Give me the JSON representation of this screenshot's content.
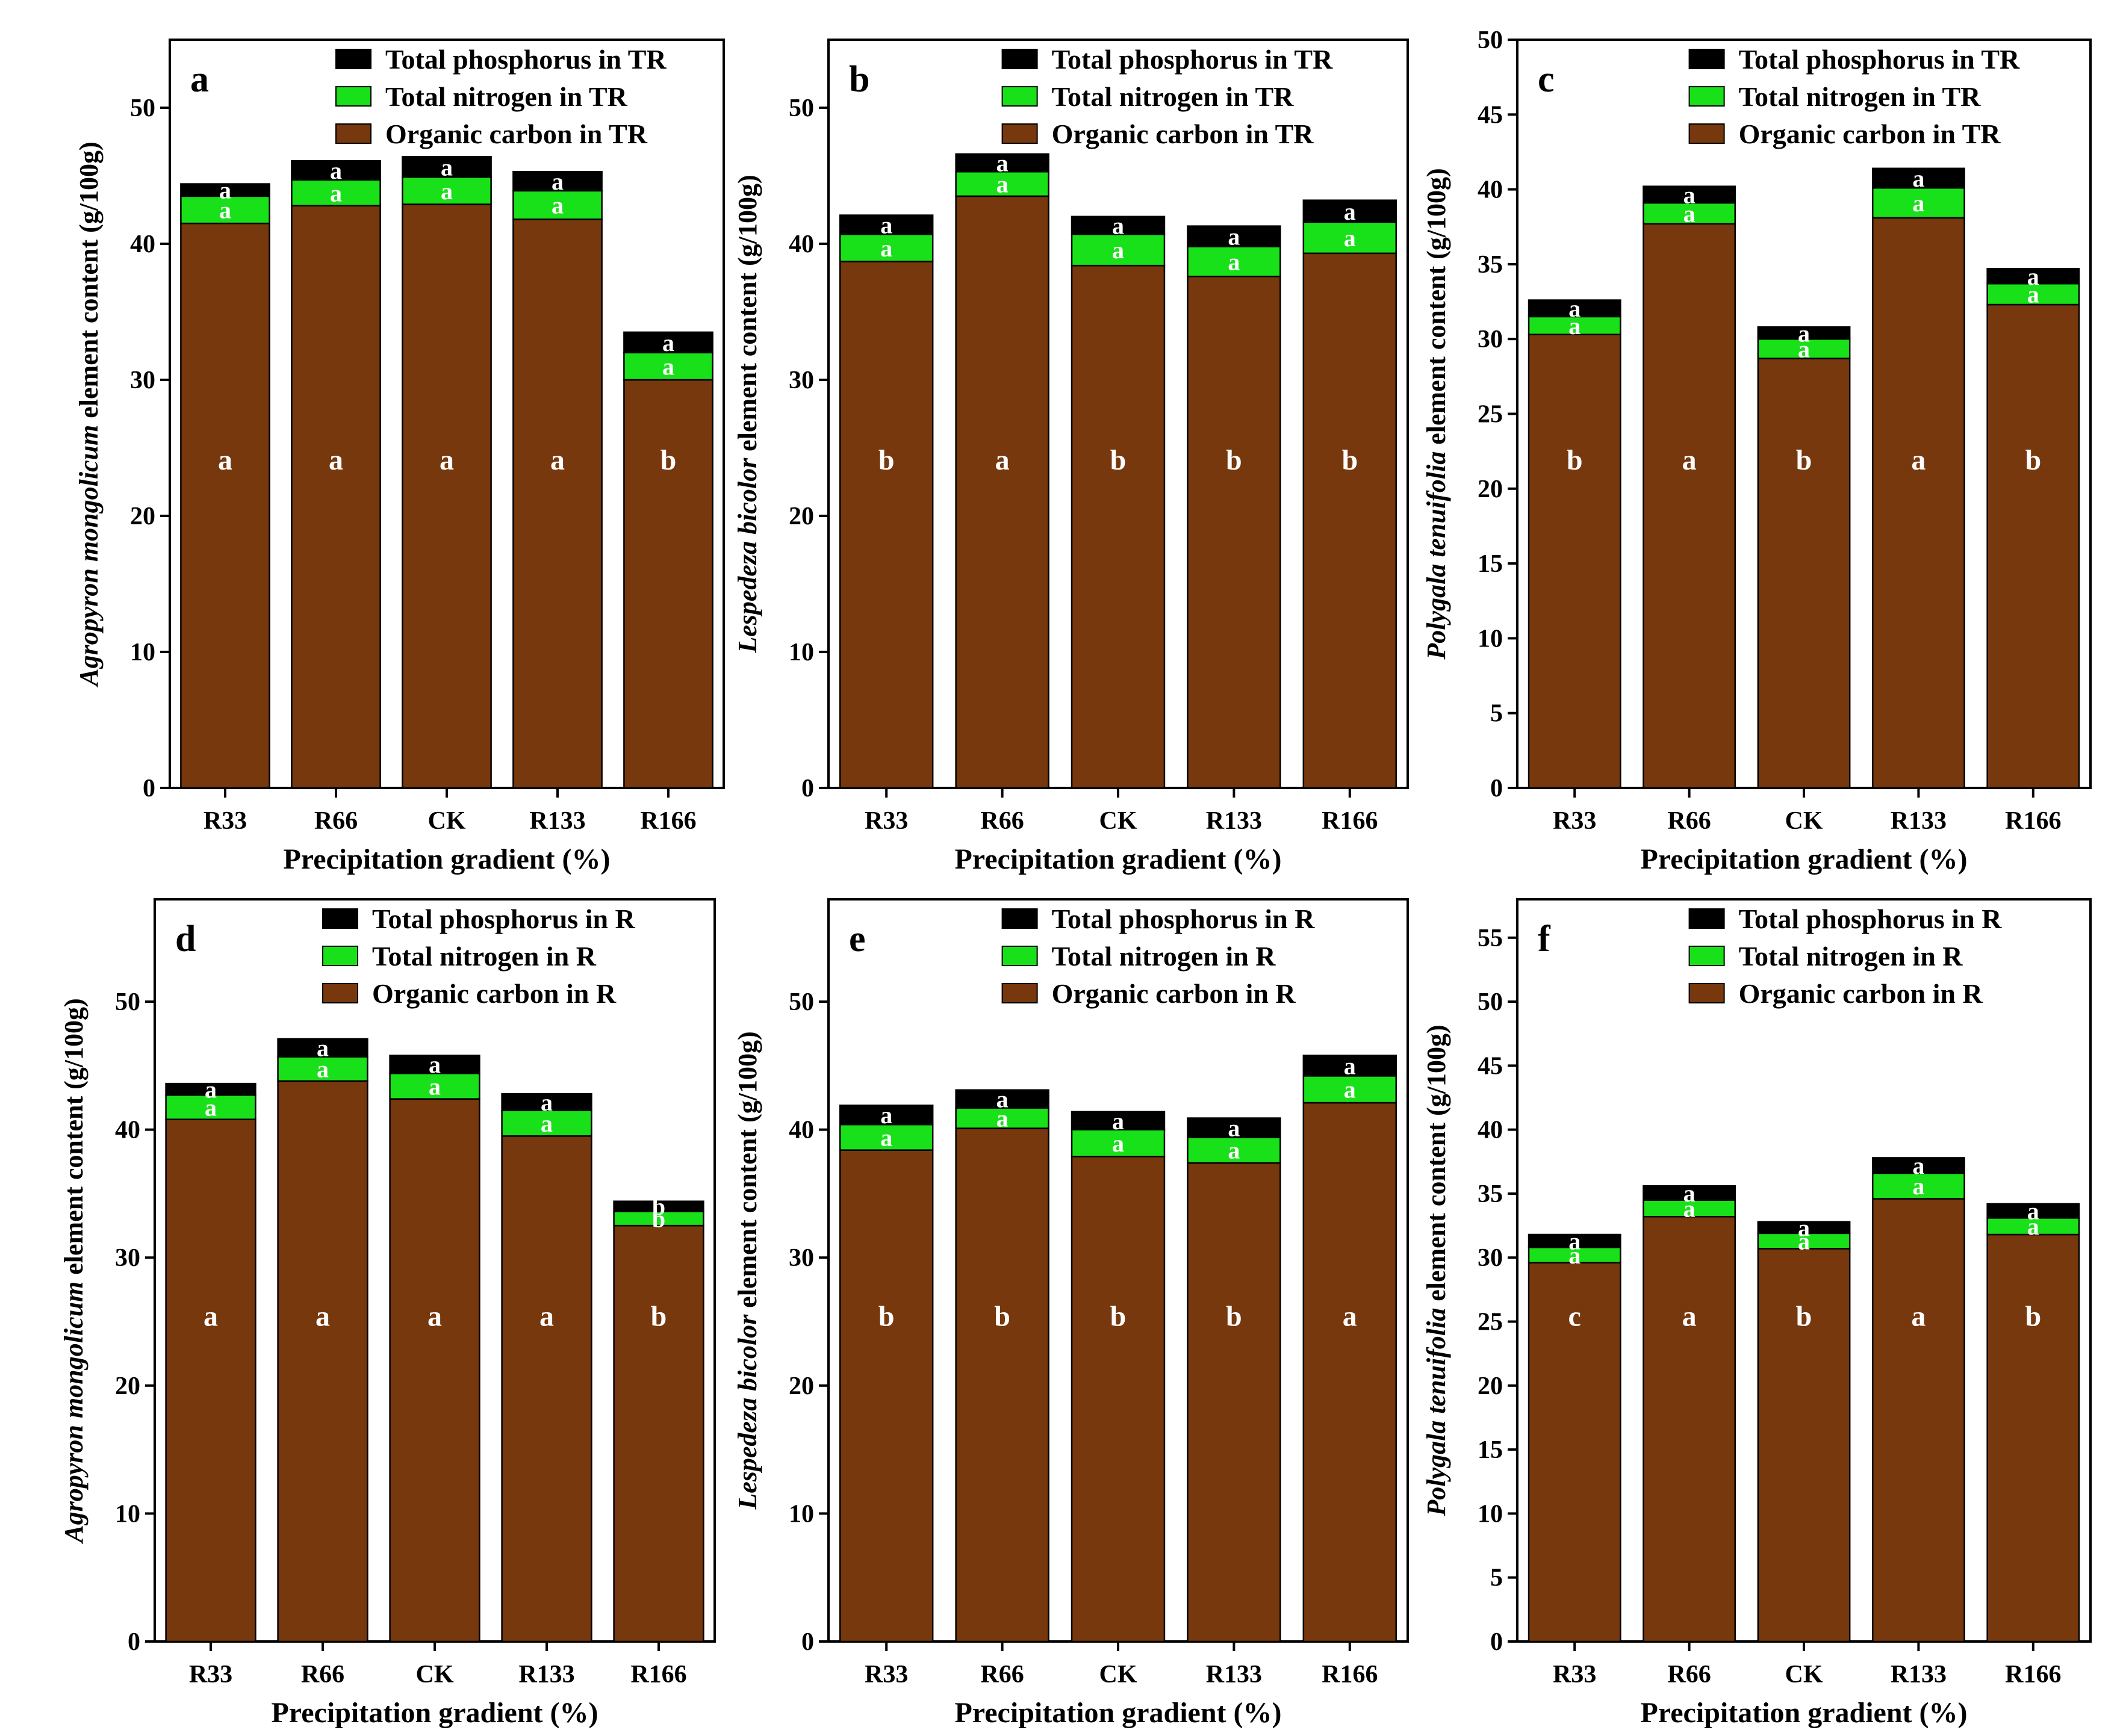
{
  "colors": {
    "organic_carbon": "#77380D",
    "total_nitrogen": "#19E119",
    "total_phosphorus": "#000000"
  },
  "chart_data": [
    {
      "type": "bar",
      "stacked": true,
      "panel": "a",
      "categories": [
        "R33",
        "R66",
        "CK",
        "R133",
        "R166"
      ],
      "xlabel": "Precipitation gradient (%)",
      "ylabel_species": "Agropyron mongolicum",
      "ylabel_rest": " element content (g/100g)",
      "ylim": [
        0,
        55
      ],
      "yticks": [
        "0",
        "10",
        "20",
        "30",
        "40",
        "50"
      ],
      "ytick_values": [
        0,
        10,
        20,
        30,
        40,
        50
      ],
      "legend_position": "top-right",
      "series": [
        {
          "name": "Organic carbon in TR",
          "key": "organic_carbon",
          "values": [
            41.5,
            42.8,
            42.9,
            41.8,
            30.0
          ],
          "letters": [
            "a",
            "a",
            "a",
            "a",
            "b"
          ]
        },
        {
          "name": "Total nitrogen in TR",
          "key": "total_nitrogen",
          "values": [
            2.0,
            1.9,
            2.0,
            2.1,
            2.0
          ],
          "letters": [
            "a",
            "a",
            "a",
            "a",
            "a"
          ]
        },
        {
          "name": "Total  phosphorus in TR",
          "key": "total_phosphorus",
          "values": [
            0.9,
            1.4,
            1.5,
            1.4,
            1.5
          ],
          "letters": [
            "a",
            "a",
            "a",
            "a",
            "a"
          ]
        }
      ]
    },
    {
      "type": "bar",
      "stacked": true,
      "panel": "b",
      "categories": [
        "R33",
        "R66",
        "CK",
        "R133",
        "R166"
      ],
      "xlabel": "Precipitation gradient (%)",
      "ylabel_species": "Lespedeza bicolor",
      "ylabel_rest": " element content (g/100g)",
      "ylim": [
        0,
        55
      ],
      "yticks": [
        "0",
        "10",
        "20",
        "30",
        "40",
        "50"
      ],
      "ytick_values": [
        0,
        10,
        20,
        30,
        40,
        50
      ],
      "legend_position": "top-right",
      "series": [
        {
          "name": "Organic carbon in TR",
          "key": "organic_carbon",
          "values": [
            38.7,
            43.5,
            38.4,
            37.6,
            39.3
          ],
          "letters": [
            "b",
            "a",
            "b",
            "b",
            "b"
          ]
        },
        {
          "name": "Total nitrogen in TR",
          "key": "total_nitrogen",
          "values": [
            2.0,
            1.8,
            2.3,
            2.2,
            2.3
          ],
          "letters": [
            "a",
            "a",
            "a",
            "a",
            "a"
          ]
        },
        {
          "name": "Total  phosphorus in TR",
          "key": "total_phosphorus",
          "values": [
            1.4,
            1.3,
            1.3,
            1.5,
            1.6
          ],
          "letters": [
            "a",
            "a",
            "a",
            "a",
            "a"
          ]
        }
      ]
    },
    {
      "type": "bar",
      "stacked": true,
      "panel": "c",
      "categories": [
        "R33",
        "R66",
        "CK",
        "R133",
        "R166"
      ],
      "xlabel": "Precipitation gradient (%)",
      "ylabel_species": "Polygala tenuifolia",
      "ylabel_rest": " element content (g/100g)",
      "ylim": [
        0,
        50
      ],
      "yticks": [
        "0",
        "5",
        "10",
        "15",
        "20",
        "25",
        "30",
        "35",
        "40",
        "45",
        "50"
      ],
      "ytick_values": [
        0,
        5,
        10,
        15,
        20,
        25,
        30,
        35,
        40,
        45,
        50
      ],
      "legend_position": "top-right",
      "series": [
        {
          "name": "Organic carbon in TR",
          "key": "organic_carbon",
          "values": [
            30.3,
            37.7,
            28.7,
            38.1,
            32.3
          ],
          "letters": [
            "b",
            "a",
            "b",
            "a",
            "b"
          ]
        },
        {
          "name": "Total nitrogen in TR",
          "key": "total_nitrogen",
          "values": [
            1.2,
            1.4,
            1.3,
            2.0,
            1.4
          ],
          "letters": [
            "a",
            "a",
            "a",
            "a",
            "a"
          ]
        },
        {
          "name": "Total  phosphorus in TR",
          "key": "total_phosphorus",
          "values": [
            1.1,
            1.1,
            0.8,
            1.3,
            1.0
          ],
          "letters": [
            "a",
            "a",
            "a",
            "a",
            "a"
          ]
        }
      ]
    },
    {
      "type": "bar",
      "stacked": true,
      "panel": "d",
      "categories": [
        "R33",
        "R66",
        "CK",
        "R133",
        "R166"
      ],
      "xlabel": "Precipitation gradient (%)",
      "ylabel_species": "Agropyron mongolicum",
      "ylabel_rest": " element content (g/100g)",
      "ylim": [
        0,
        58
      ],
      "yticks": [
        "0",
        "10",
        "20",
        "30",
        "40",
        "50"
      ],
      "ytick_values": [
        0,
        10,
        20,
        30,
        40,
        50
      ],
      "legend_position": "top-right",
      "series": [
        {
          "name": "Organic carbon in R",
          "key": "organic_carbon",
          "values": [
            40.8,
            43.8,
            42.4,
            39.5,
            32.5
          ],
          "letters": [
            "a",
            "a",
            "a",
            "a",
            "b"
          ]
        },
        {
          "name": "Total nitrogen in R",
          "key": "total_nitrogen",
          "values": [
            1.9,
            1.9,
            2.0,
            2.0,
            1.1
          ],
          "letters": [
            "a",
            "a",
            "a",
            "a",
            "b"
          ]
        },
        {
          "name": "Total  phosphorus in R",
          "key": "total_phosphorus",
          "values": [
            0.9,
            1.4,
            1.4,
            1.3,
            0.8
          ],
          "letters": [
            "a",
            "a",
            "a",
            "a",
            "b"
          ]
        }
      ]
    },
    {
      "type": "bar",
      "stacked": true,
      "panel": "e",
      "categories": [
        "R33",
        "R66",
        "CK",
        "R133",
        "R166"
      ],
      "xlabel": "Precipitation gradient (%)",
      "ylabel_species": "Lespedeza bicolor",
      "ylabel_rest": " element content (g/100g)",
      "ylim": [
        0,
        58
      ],
      "yticks": [
        "0",
        "10",
        "20",
        "30",
        "40",
        "50"
      ],
      "ytick_values": [
        0,
        10,
        20,
        30,
        40,
        50
      ],
      "legend_position": "top-right",
      "series": [
        {
          "name": "Organic carbon in R",
          "key": "organic_carbon",
          "values": [
            38.4,
            40.1,
            37.9,
            37.4,
            42.1
          ],
          "letters": [
            "b",
            "b",
            "b",
            "b",
            "a"
          ]
        },
        {
          "name": "Total nitrogen in R",
          "key": "total_nitrogen",
          "values": [
            2.0,
            1.6,
            2.1,
            2.0,
            2.1
          ],
          "letters": [
            "a",
            "a",
            "a",
            "a",
            "a"
          ]
        },
        {
          "name": "Total  phosphorus in R",
          "key": "total_phosphorus",
          "values": [
            1.5,
            1.4,
            1.4,
            1.5,
            1.6
          ],
          "letters": [
            "a",
            "a",
            "a",
            "a",
            "a"
          ]
        }
      ]
    },
    {
      "type": "bar",
      "stacked": true,
      "panel": "f",
      "categories": [
        "R33",
        "R66",
        "CK",
        "R133",
        "R166"
      ],
      "xlabel": "Precipitation gradient (%)",
      "ylabel_species": "Polygala tenuifolia",
      "ylabel_rest": " element content (g/100g)",
      "ylim": [
        0,
        58
      ],
      "yticks": [
        "0",
        "5",
        "10",
        "15",
        "20",
        "25",
        "30",
        "35",
        "40",
        "45",
        "50",
        "55"
      ],
      "ytick_values": [
        0,
        5,
        10,
        15,
        20,
        25,
        30,
        35,
        40,
        45,
        50,
        55
      ],
      "legend_position": "top-right",
      "series": [
        {
          "name": "Organic carbon in R",
          "key": "organic_carbon",
          "values": [
            29.6,
            33.2,
            30.7,
            34.6,
            31.8
          ],
          "letters": [
            "c",
            "a",
            "b",
            "a",
            "b"
          ]
        },
        {
          "name": "Total nitrogen in R",
          "key": "total_nitrogen",
          "values": [
            1.2,
            1.3,
            1.2,
            2.0,
            1.3
          ],
          "letters": [
            "a",
            "a",
            "a",
            "a",
            "a"
          ]
        },
        {
          "name": "Total  phosphorus in R",
          "key": "total_phosphorus",
          "values": [
            1.0,
            1.1,
            0.9,
            1.2,
            1.1
          ],
          "letters": [
            "a",
            "a",
            "a",
            "a",
            "a"
          ]
        }
      ]
    }
  ]
}
